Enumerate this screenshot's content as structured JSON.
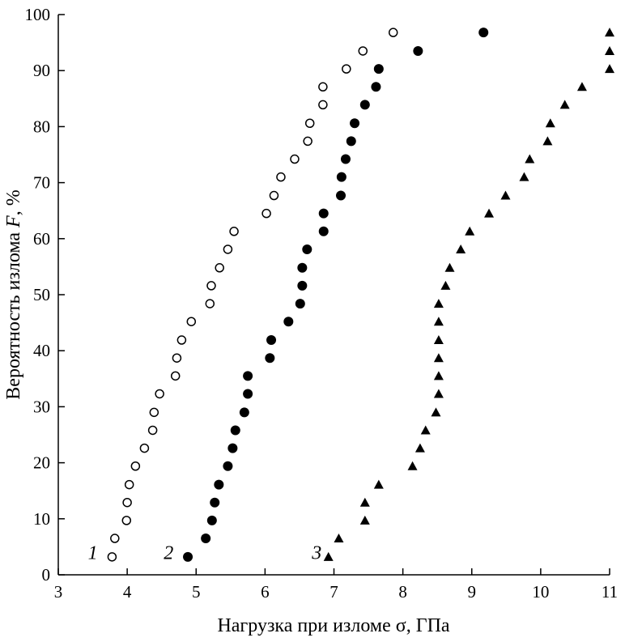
{
  "chart_data": {
    "type": "scatter",
    "title": "",
    "xlabel": "Нагрузка при изломе σ, ГПа",
    "ylabel_parts": [
      "Вероятность излома ",
      "F",
      ", %"
    ],
    "xlim": [
      3,
      11
    ],
    "ylim": [
      0,
      100
    ],
    "xticks": [
      3,
      4,
      5,
      6,
      7,
      8,
      9,
      10,
      11
    ],
    "yticks": [
      0,
      10,
      20,
      30,
      40,
      50,
      60,
      70,
      80,
      90,
      100
    ],
    "grid": false,
    "y": [
      3.2,
      6.5,
      9.7,
      12.9,
      16.1,
      19.4,
      22.6,
      25.8,
      29.0,
      32.3,
      35.5,
      38.7,
      41.9,
      45.2,
      48.4,
      51.6,
      54.8,
      58.1,
      61.3,
      64.5,
      67.7,
      71.0,
      74.2,
      77.4,
      80.6,
      83.9,
      87.1,
      90.3,
      93.5,
      96.8
    ],
    "series": [
      {
        "name": "1",
        "marker": "open-circle",
        "label_pos": [
          3.5,
          4
        ],
        "x": [
          3.78,
          3.82,
          3.99,
          4.0,
          4.03,
          4.12,
          4.25,
          4.37,
          4.39,
          4.47,
          4.7,
          4.72,
          4.79,
          4.93,
          5.2,
          5.22,
          5.34,
          5.46,
          5.55,
          6.02,
          6.13,
          6.23,
          6.43,
          6.62,
          6.65,
          6.84,
          6.84,
          7.18,
          7.42,
          7.86
        ]
      },
      {
        "name": "2",
        "marker": "filled-circle",
        "label_pos": [
          4.6,
          4
        ],
        "x": [
          4.88,
          5.14,
          5.23,
          5.27,
          5.33,
          5.46,
          5.53,
          5.57,
          5.7,
          5.75,
          5.75,
          6.07,
          6.09,
          6.34,
          6.51,
          6.54,
          6.54,
          6.61,
          6.85,
          6.85,
          7.1,
          7.11,
          7.17,
          7.25,
          7.3,
          7.45,
          7.61,
          7.65,
          8.22,
          9.17
        ]
      },
      {
        "name": "3",
        "marker": "filled-triangle",
        "label_pos": [
          6.75,
          4
        ],
        "x": [
          6.92,
          7.07,
          7.45,
          7.45,
          7.65,
          8.14,
          8.25,
          8.33,
          8.48,
          8.52,
          8.52,
          8.52,
          8.52,
          8.52,
          8.52,
          8.62,
          8.68,
          8.84,
          8.97,
          9.25,
          9.49,
          9.76,
          9.84,
          10.1,
          10.14,
          10.35,
          10.6,
          11.0,
          11.0,
          11.0
        ]
      }
    ]
  }
}
